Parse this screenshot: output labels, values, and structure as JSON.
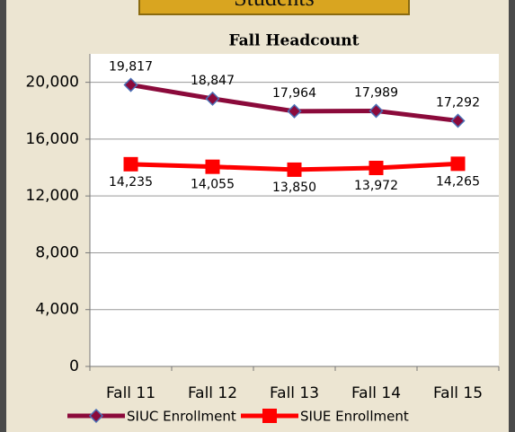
{
  "header": {
    "tab": "Students"
  },
  "chart_data": {
    "type": "line",
    "title": "Fall Headcount",
    "categories": [
      "Fall 11",
      "Fall 12",
      "Fall 13",
      "Fall 14",
      "Fall 15"
    ],
    "series": [
      {
        "name": "SIUC Enrollment",
        "color": "#8b0a3b",
        "marker": "diamond",
        "values": [
          19817,
          18847,
          17964,
          17989,
          17292
        ],
        "value_labels": [
          "19,817",
          "18,847",
          "17,964",
          "17,989",
          "17,292"
        ]
      },
      {
        "name": "SIUE Enrollment",
        "color": "#ff0000",
        "marker": "square",
        "values": [
          14235,
          14055,
          13850,
          13972,
          14265
        ],
        "value_labels": [
          "14,235",
          "14,055",
          "13,850",
          "13,972",
          "14,265"
        ]
      }
    ],
    "ylim": [
      0,
      22000
    ],
    "yticks": [
      0,
      {
        "value": 4000,
        "label": "4,000"
      },
      {
        "value": 8000,
        "label": "8,000"
      },
      {
        "value": 12000,
        "label": "12,000"
      },
      {
        "value": 16000,
        "label": "16,000"
      },
      {
        "value": 20000,
        "label": "20,000"
      }
    ],
    "grid": true,
    "legend": "bottom"
  }
}
